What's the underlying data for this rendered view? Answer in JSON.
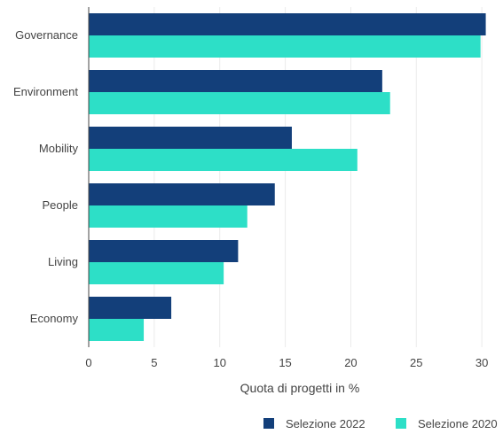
{
  "chart_data": {
    "type": "bar",
    "orientation": "horizontal",
    "categories": [
      "Governance",
      "Environment",
      "Mobility",
      "People",
      "Living",
      "Economy"
    ],
    "series": [
      {
        "name": "Selezione 2022",
        "color": "#133f7a",
        "values": [
          30.3,
          22.4,
          15.5,
          14.2,
          11.4,
          6.3
        ]
      },
      {
        "name": "Selezione 2020",
        "color": "#2ddfc7",
        "values": [
          29.9,
          23.0,
          20.5,
          12.1,
          10.3,
          4.2
        ]
      }
    ],
    "xlabel": "Quota di progetti in %",
    "ylabel": "",
    "xlim": [
      0,
      30.6
    ],
    "xticks": [
      0,
      5,
      10,
      15,
      20,
      25,
      30
    ],
    "grid": true,
    "legend_position": "bottom-right"
  }
}
